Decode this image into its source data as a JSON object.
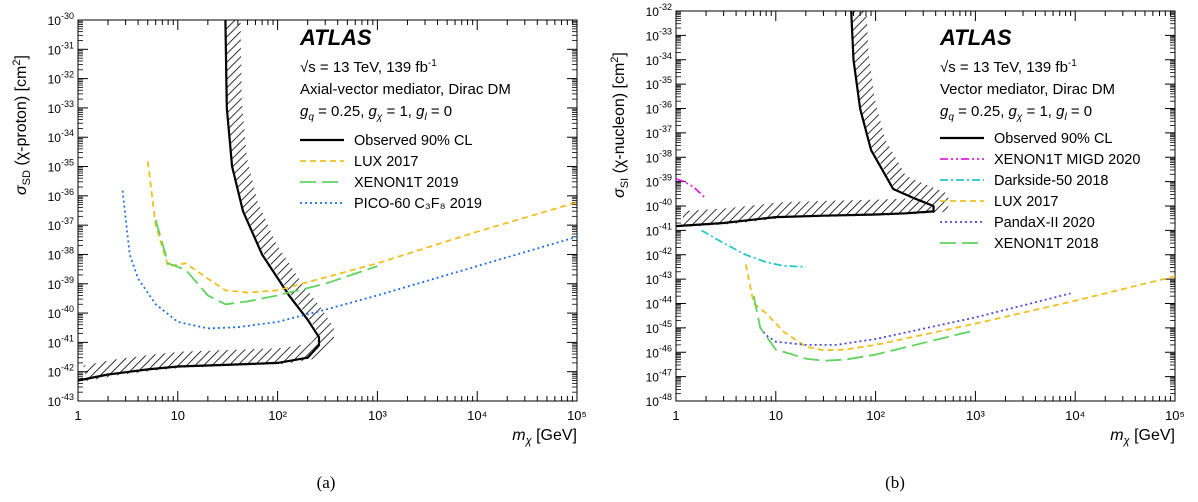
{
  "captions": [
    "(a)",
    "(b)"
  ],
  "panels": [
    {
      "atlas": "ATLAS",
      "energy": "√s = 13 TeV, 139 fb",
      "energy_sup": "-1",
      "model": "Axial-vector mediator, Dirac DM",
      "couplings": "g_q = 0.25, g_χ = 1, g_l = 0",
      "ylabel": "σ_SD (χ-proton) [cm²]",
      "ylabel_parts": {
        "sym": "σ",
        "sub": "SD",
        "rest": " (χ-proton) [cm",
        "sup": "2",
        "end": "]"
      },
      "xlabel": "m_χ [GeV]"
    },
    {
      "atlas": "ATLAS",
      "energy": "√s = 13 TeV, 139 fb",
      "energy_sup": "-1",
      "model": "Vector mediator, Dirac DM",
      "couplings": "g_q = 0.25, g_χ = 1, g_l = 0",
      "ylabel": "σ_SI (χ-nucleon) [cm²]",
      "ylabel_parts": {
        "sym": "σ",
        "sub": "SI",
        "rest": " (χ-nucleon) [cm",
        "sup": "2",
        "end": "]"
      },
      "xlabel": "m_χ [GeV]"
    }
  ],
  "chart_data": [
    {
      "type": "line",
      "xlabel": "m_χ [GeV]",
      "ylabel": "σ_SD (χ-proton) [cm²]",
      "x_scale": "log",
      "y_scale": "log",
      "xlim": [
        1,
        100000
      ],
      "ylim": [
        1e-43,
        1e-30
      ],
      "x_tick_exponents": [
        0,
        1,
        2,
        3,
        4,
        5
      ],
      "x_tick_labels": [
        "1",
        "10",
        "10²",
        "10³",
        "10⁴",
        "10⁵"
      ],
      "y_tick_exponents": [
        -43,
        -42,
        -41,
        -40,
        -39,
        -38,
        -37,
        -36,
        -35,
        -34,
        -33,
        -32,
        -31,
        -30
      ],
      "legend_position": "top-right",
      "series": [
        {
          "name": "Observed 90% CL",
          "color": "#000000",
          "style": "solid",
          "hatched": true,
          "points": [
            [
              1,
              5e-43
            ],
            [
              2,
              8e-43
            ],
            [
              5,
              1.2e-42
            ],
            [
              10,
              1.5e-42
            ],
            [
              30,
              1.7e-42
            ],
            [
              100,
              2e-42
            ],
            [
              200,
              3e-42
            ],
            [
              260,
              8e-42
            ],
            [
              260,
              1.5e-41
            ],
            [
              200,
              6e-41
            ],
            [
              130,
              4e-40
            ],
            [
              70,
              1e-38
            ],
            [
              45,
              3e-37
            ],
            [
              35,
              1e-35
            ],
            [
              31,
              1e-33
            ],
            [
              30,
              1e-30
            ]
          ]
        },
        {
          "name": "LUX 2017",
          "color": "#f0c020",
          "style": "dashed",
          "points": [
            [
              5,
              1.5e-35
            ],
            [
              6,
              1e-37
            ],
            [
              8,
              4e-39
            ],
            [
              12,
              5e-39
            ],
            [
              20,
              1.5e-39
            ],
            [
              30,
              6e-40
            ],
            [
              50,
              5e-40
            ],
            [
              100,
              6e-40
            ],
            [
              1000,
              5e-39
            ],
            [
              10000,
              6e-38
            ],
            [
              100000,
              6e-37
            ]
          ]
        },
        {
          "name": "XENON1T 2019",
          "color": "#5fd35f",
          "style": "long-dashed",
          "points": [
            [
              6,
              1.5e-37
            ],
            [
              8,
              5e-39
            ],
            [
              12,
              3e-39
            ],
            [
              20,
              4e-40
            ],
            [
              30,
              2e-40
            ],
            [
              50,
              2.5e-40
            ],
            [
              100,
              4e-40
            ],
            [
              300,
              1e-39
            ],
            [
              1000,
              4e-39
            ]
          ]
        },
        {
          "name": "PICO-60 C₃F₈ 2019",
          "color": "#1e6ee6",
          "style": "dotted",
          "points": [
            [
              2.8,
              1.5e-36
            ],
            [
              3.3,
              1e-38
            ],
            [
              4,
              1.5e-39
            ],
            [
              6,
              2e-40
            ],
            [
              10,
              5e-41
            ],
            [
              20,
              3e-41
            ],
            [
              40,
              3.3e-41
            ],
            [
              100,
              5e-41
            ],
            [
              300,
              1.3e-40
            ],
            [
              1000,
              4e-40
            ],
            [
              10000,
              4e-39
            ],
            [
              100000,
              4e-38
            ]
          ]
        }
      ]
    },
    {
      "type": "line",
      "xlabel": "m_χ [GeV]",
      "ylabel": "σ_SI (χ-nucleon) [cm²]",
      "x_scale": "log",
      "y_scale": "log",
      "xlim": [
        1,
        100000
      ],
      "ylim": [
        1e-48,
        1e-32
      ],
      "x_tick_exponents": [
        0,
        1,
        2,
        3,
        4,
        5
      ],
      "x_tick_labels": [
        "1",
        "10",
        "10²",
        "10³",
        "10⁴",
        "10⁵"
      ],
      "y_tick_exponents": [
        -48,
        -47,
        -46,
        -45,
        -44,
        -43,
        -42,
        -41,
        -40,
        -39,
        -38,
        -37,
        -36,
        -35,
        -34,
        -33,
        -32
      ],
      "legend_position": "top-right",
      "series": [
        {
          "name": "Observed 90% CL",
          "color": "#000000",
          "style": "solid",
          "hatched": true,
          "points": [
            [
              1,
              1.5e-41
            ],
            [
              3,
              2e-41
            ],
            [
              10,
              3.5e-41
            ],
            [
              30,
              4e-41
            ],
            [
              100,
              4.5e-41
            ],
            [
              200,
              5e-41
            ],
            [
              380,
              6e-41
            ],
            [
              380,
              1e-40
            ],
            [
              250,
              2e-40
            ],
            [
              150,
              5e-40
            ],
            [
              90,
              2e-38
            ],
            [
              70,
              1e-36
            ],
            [
              60,
              1e-34
            ],
            [
              57,
              1e-32
            ]
          ]
        },
        {
          "name": "XENON1T MIGD 2020",
          "color": "#e020e0",
          "style": "dash-dot-dot",
          "points": [
            [
              1,
              1.3e-39
            ],
            [
              1.2,
              1e-39
            ],
            [
              1.5,
              6e-40
            ],
            [
              2,
              2e-40
            ]
          ]
        },
        {
          "name": "Darkside-50 2018",
          "color": "#20c8c8",
          "style": "dash-dot",
          "points": [
            [
              1.8,
              1e-41
            ],
            [
              3,
              3e-42
            ],
            [
              5,
              1e-42
            ],
            [
              8,
              5e-43
            ],
            [
              12,
              3.5e-43
            ],
            [
              20,
              3.2e-43
            ]
          ]
        },
        {
          "name": "LUX 2017",
          "color": "#f0c020",
          "style": "dashed",
          "points": [
            [
              5,
              4e-43
            ],
            [
              6,
              1e-44
            ],
            [
              8,
              4e-45
            ],
            [
              12,
              7e-46
            ],
            [
              20,
              1.7e-46
            ],
            [
              30,
              1.2e-46
            ],
            [
              50,
              1.3e-46
            ],
            [
              100,
              2e-46
            ],
            [
              1000,
              1.5e-45
            ],
            [
              10000,
              1.3e-44
            ],
            [
              100000,
              1.3e-43
            ]
          ]
        },
        {
          "name": "PandaX-II 2020",
          "color": "#4a4ad8",
          "style": "dotted",
          "points": [
            [
              7,
              1e-45
            ],
            [
              8,
              5e-46
            ],
            [
              10,
              2.7e-46
            ],
            [
              20,
              2e-46
            ],
            [
              40,
              2e-46
            ],
            [
              100,
              3.5e-46
            ],
            [
              1000,
              2.7e-45
            ],
            [
              9000,
              2.6e-44
            ]
          ]
        },
        {
          "name": "XENON1T 2018",
          "color": "#5fd35f",
          "style": "long-dashed",
          "points": [
            [
              6,
              2e-44
            ],
            [
              7,
              1e-45
            ],
            [
              10,
              1.3e-46
            ],
            [
              20,
              5.5e-47
            ],
            [
              30,
              4.5e-47
            ],
            [
              50,
              5e-47
            ],
            [
              100,
              8e-47
            ],
            [
              1000,
              8e-46
            ]
          ]
        }
      ]
    }
  ]
}
